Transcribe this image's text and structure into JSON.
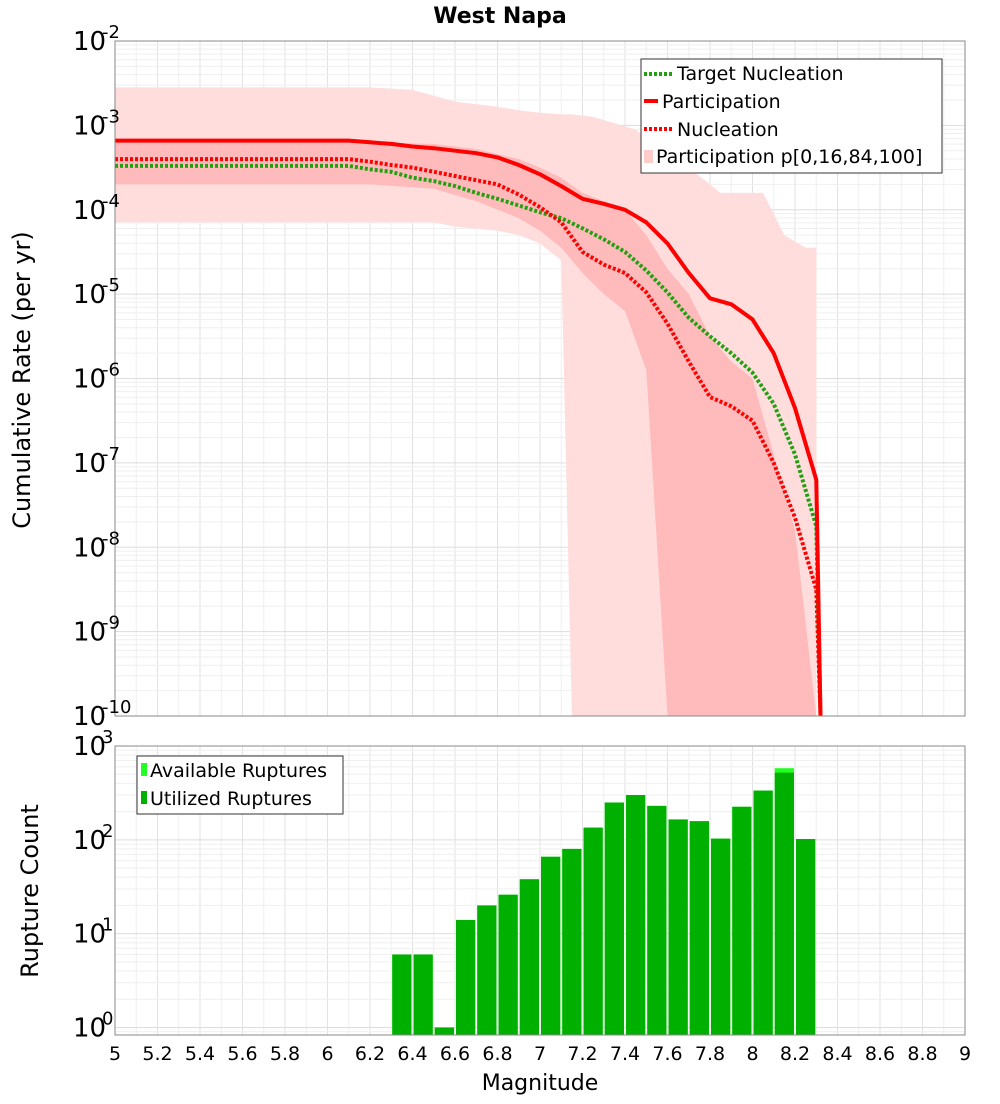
{
  "chart_data": [
    {
      "type": "line",
      "title": "West Napa",
      "ylabel": "Cumulative Rate (per yr)",
      "xlabel": "",
      "xlim": [
        5,
        9
      ],
      "ylim_log10": [
        -10,
        -2
      ],
      "y_scale": "log",
      "y_tick_labels": [
        {
          "base": "10",
          "exp": "-2"
        },
        {
          "base": "10",
          "exp": "-3"
        },
        {
          "base": "10",
          "exp": "-4"
        },
        {
          "base": "10",
          "exp": "-5"
        },
        {
          "base": "10",
          "exp": "-6"
        },
        {
          "base": "10",
          "exp": "-7"
        },
        {
          "base": "10",
          "exp": "-8"
        },
        {
          "base": "10",
          "exp": "-9"
        },
        {
          "base": "10",
          "exp": "-10"
        }
      ],
      "legend_position": "top-right",
      "legend": [
        {
          "label": "Target Nucleation",
          "style": "dotted",
          "color": "#22a010"
        },
        {
          "label": "Participation",
          "style": "solid",
          "color": "#ff0000"
        },
        {
          "label": "Nucleation",
          "style": "dotted",
          "color": "#ff0000"
        },
        {
          "label": "Participation p[0,16,84,100]",
          "style": "band",
          "color": "#ffcccc"
        }
      ],
      "band_outer": {
        "name": "p0-p100",
        "color": "#ffdddd",
        "x": [
          5.0,
          6.2,
          6.4,
          6.5,
          6.6,
          6.8,
          6.9,
          7.0,
          7.1,
          7.15,
          7.25,
          7.45,
          7.55,
          7.65,
          7.75,
          7.85,
          7.95,
          8.05,
          8.15,
          8.25,
          8.3,
          8.3
        ],
        "upper": [
          -2.55,
          -2.55,
          -2.58,
          -2.65,
          -2.72,
          -2.78,
          -2.82,
          -2.85,
          -2.87,
          -2.87,
          -2.9,
          -3.05,
          -3.25,
          -3.4,
          -3.6,
          -3.8,
          -3.8,
          -3.8,
          -4.3,
          -4.45,
          -4.45,
          -10
        ],
        "lower": [
          -4.15,
          -4.15,
          -4.15,
          -4.15,
          -4.2,
          -4.25,
          -4.3,
          -4.4,
          -4.6,
          -10,
          -10,
          -10,
          -10,
          -10,
          -10,
          -10,
          -10,
          -10,
          -10,
          -10,
          -10,
          -10
        ]
      },
      "band_inner": {
        "name": "p16-p84",
        "color": "#ffbbbb",
        "x": [
          5.0,
          6.2,
          6.5,
          6.7,
          6.9,
          7.0,
          7.1,
          7.2,
          7.3,
          7.4,
          7.5,
          7.6,
          7.7,
          7.8,
          7.9,
          8.0,
          8.1,
          8.2,
          8.3
        ],
        "upper": [
          -3.2,
          -3.2,
          -3.22,
          -3.28,
          -3.4,
          -3.5,
          -3.62,
          -3.8,
          -3.9,
          -4.0,
          -4.3,
          -4.7,
          -5.0,
          -5.5,
          -5.8,
          -6.0,
          -6.9,
          -7.8,
          -10
        ],
        "lower": [
          -3.7,
          -3.7,
          -3.75,
          -3.9,
          -4.1,
          -4.25,
          -4.45,
          -4.75,
          -5.0,
          -5.2,
          -5.9,
          -10,
          -10,
          -10,
          -10,
          -10,
          -10,
          -10,
          -10
        ]
      },
      "series": [
        {
          "name": "Participation",
          "style": "solid",
          "color": "#ff0000",
          "x": [
            5.0,
            6.0,
            6.1,
            6.2,
            6.3,
            6.4,
            6.5,
            6.6,
            6.7,
            6.8,
            6.9,
            7.0,
            7.1,
            7.2,
            7.3,
            7.4,
            7.5,
            7.6,
            7.7,
            7.8,
            7.9,
            8.0,
            8.1,
            8.2,
            8.3,
            8.32
          ],
          "log10_y": [
            -3.18,
            -3.18,
            -3.18,
            -3.2,
            -3.22,
            -3.25,
            -3.27,
            -3.3,
            -3.33,
            -3.38,
            -3.47,
            -3.58,
            -3.72,
            -3.87,
            -3.93,
            -4.0,
            -4.15,
            -4.4,
            -4.75,
            -5.05,
            -5.12,
            -5.3,
            -5.7,
            -6.35,
            -7.2,
            -10
          ]
        },
        {
          "name": "Nucleation",
          "style": "dotted",
          "color": "#ff0000",
          "x": [
            5.0,
            6.0,
            6.1,
            6.2,
            6.3,
            6.4,
            6.5,
            6.6,
            6.7,
            6.8,
            6.9,
            7.0,
            7.1,
            7.2,
            7.3,
            7.4,
            7.5,
            7.6,
            7.7,
            7.8,
            7.9,
            8.0,
            8.1,
            8.2,
            8.3,
            8.32
          ],
          "log10_y": [
            -3.4,
            -3.4,
            -3.4,
            -3.43,
            -3.47,
            -3.5,
            -3.55,
            -3.6,
            -3.65,
            -3.7,
            -3.82,
            -3.97,
            -4.15,
            -4.5,
            -4.65,
            -4.75,
            -4.98,
            -5.35,
            -5.8,
            -6.22,
            -6.33,
            -6.5,
            -7.0,
            -7.65,
            -8.5,
            -10
          ]
        },
        {
          "name": "Target Nucleation",
          "style": "dotted",
          "color": "#22a010",
          "x": [
            5.0,
            6.0,
            6.1,
            6.2,
            6.3,
            6.4,
            6.5,
            6.6,
            6.7,
            6.8,
            6.9,
            7.0,
            7.1,
            7.2,
            7.3,
            7.4,
            7.5,
            7.6,
            7.7,
            7.8,
            7.9,
            8.0,
            8.1,
            8.2,
            8.3,
            8.32
          ],
          "log10_y": [
            -3.48,
            -3.48,
            -3.48,
            -3.52,
            -3.55,
            -3.62,
            -3.66,
            -3.72,
            -3.8,
            -3.87,
            -3.95,
            -4.03,
            -4.1,
            -4.22,
            -4.35,
            -4.5,
            -4.72,
            -4.98,
            -5.28,
            -5.5,
            -5.7,
            -5.93,
            -6.3,
            -6.9,
            -7.75,
            -10
          ]
        }
      ]
    },
    {
      "type": "bar",
      "ylabel": "Rupture Count",
      "xlabel": "Magnitude",
      "xlim": [
        5,
        9
      ],
      "y_scale": "log",
      "ylim_log10": [
        -0.08,
        3
      ],
      "bin_width": 0.1,
      "x_tick_labels": [
        "5",
        "5.2",
        "5.4",
        "5.6",
        "5.8",
        "6",
        "6.2",
        "6.4",
        "6.6",
        "6.8",
        "7",
        "7.2",
        "7.4",
        "7.6",
        "7.8",
        "8",
        "8.2",
        "8.4",
        "8.6",
        "8.8",
        "9"
      ],
      "y_tick_labels": [
        {
          "base": "10",
          "exp": "3"
        },
        {
          "base": "10",
          "exp": "2"
        },
        {
          "base": "10",
          "exp": "1"
        },
        {
          "base": "10",
          "exp": "0"
        }
      ],
      "legend_position": "top-left",
      "legend": [
        {
          "label": "Available Ruptures",
          "color": "#22ff22"
        },
        {
          "label": "Utilized Ruptures",
          "color": "#00b000"
        }
      ],
      "bin_starts": [
        6.3,
        6.4,
        6.5,
        6.6,
        6.7,
        6.8,
        6.9,
        7.0,
        7.1,
        7.2,
        7.3,
        7.4,
        7.5,
        7.6,
        7.7,
        7.8,
        7.9,
        8.0,
        8.1,
        8.2
      ],
      "series": [
        {
          "name": "Available Ruptures",
          "values": [
            6,
            6,
            1,
            14,
            20,
            26,
            38,
            66,
            80,
            135,
            250,
            300,
            230,
            165,
            158,
            103,
            225,
            335,
            580,
            102
          ]
        },
        {
          "name": "Utilized Ruptures",
          "values": [
            6,
            6,
            1,
            14,
            20,
            26,
            38,
            66,
            80,
            135,
            250,
            300,
            230,
            165,
            158,
            103,
            225,
            335,
            520,
            102
          ]
        }
      ]
    }
  ]
}
